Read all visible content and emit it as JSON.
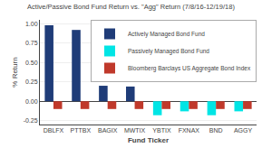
{
  "chart_data": {
    "type": "bar",
    "title": "Active/Passive Bond Fund Return vs. \"Agg\" Return (7/8/16-12/19/18)",
    "xlabel": "Fund Ticker",
    "ylabel": "% Return",
    "categories": [
      "DBLFX",
      "PTTBX",
      "BAGIX",
      "MWTIX",
      "YBTIX",
      "FXNAX",
      "BND",
      "AGGY"
    ],
    "series": [
      {
        "name": "Actively Managed Bond Fund",
        "color": "#1f3c78",
        "values": [
          0.98,
          0.92,
          0.2,
          0.19,
          null,
          null,
          null,
          null
        ]
      },
      {
        "name": "Passively Managed Bond Fund",
        "color": "#00e5e5",
        "values": [
          null,
          null,
          null,
          null,
          -0.18,
          -0.13,
          -0.18,
          -0.13
        ]
      },
      {
        "name": "Bloomberg Barclays US Aggregate Bond Index",
        "color": "#c0392b",
        "values": [
          -0.1,
          -0.1,
          -0.1,
          -0.1,
          -0.1,
          -0.1,
          -0.1,
          -0.1
        ]
      }
    ],
    "ylim": [
      -0.3,
      1.05
    ],
    "yticks": [
      -0.25,
      {
        "value": 0,
        "label": "0.00"
      },
      0.25,
      {
        "value": 0.5,
        "label": "0.50"
      },
      0.75,
      {
        "value": 1,
        "label": "1.00"
      }
    ],
    "grid": true,
    "legend": "upper right"
  }
}
